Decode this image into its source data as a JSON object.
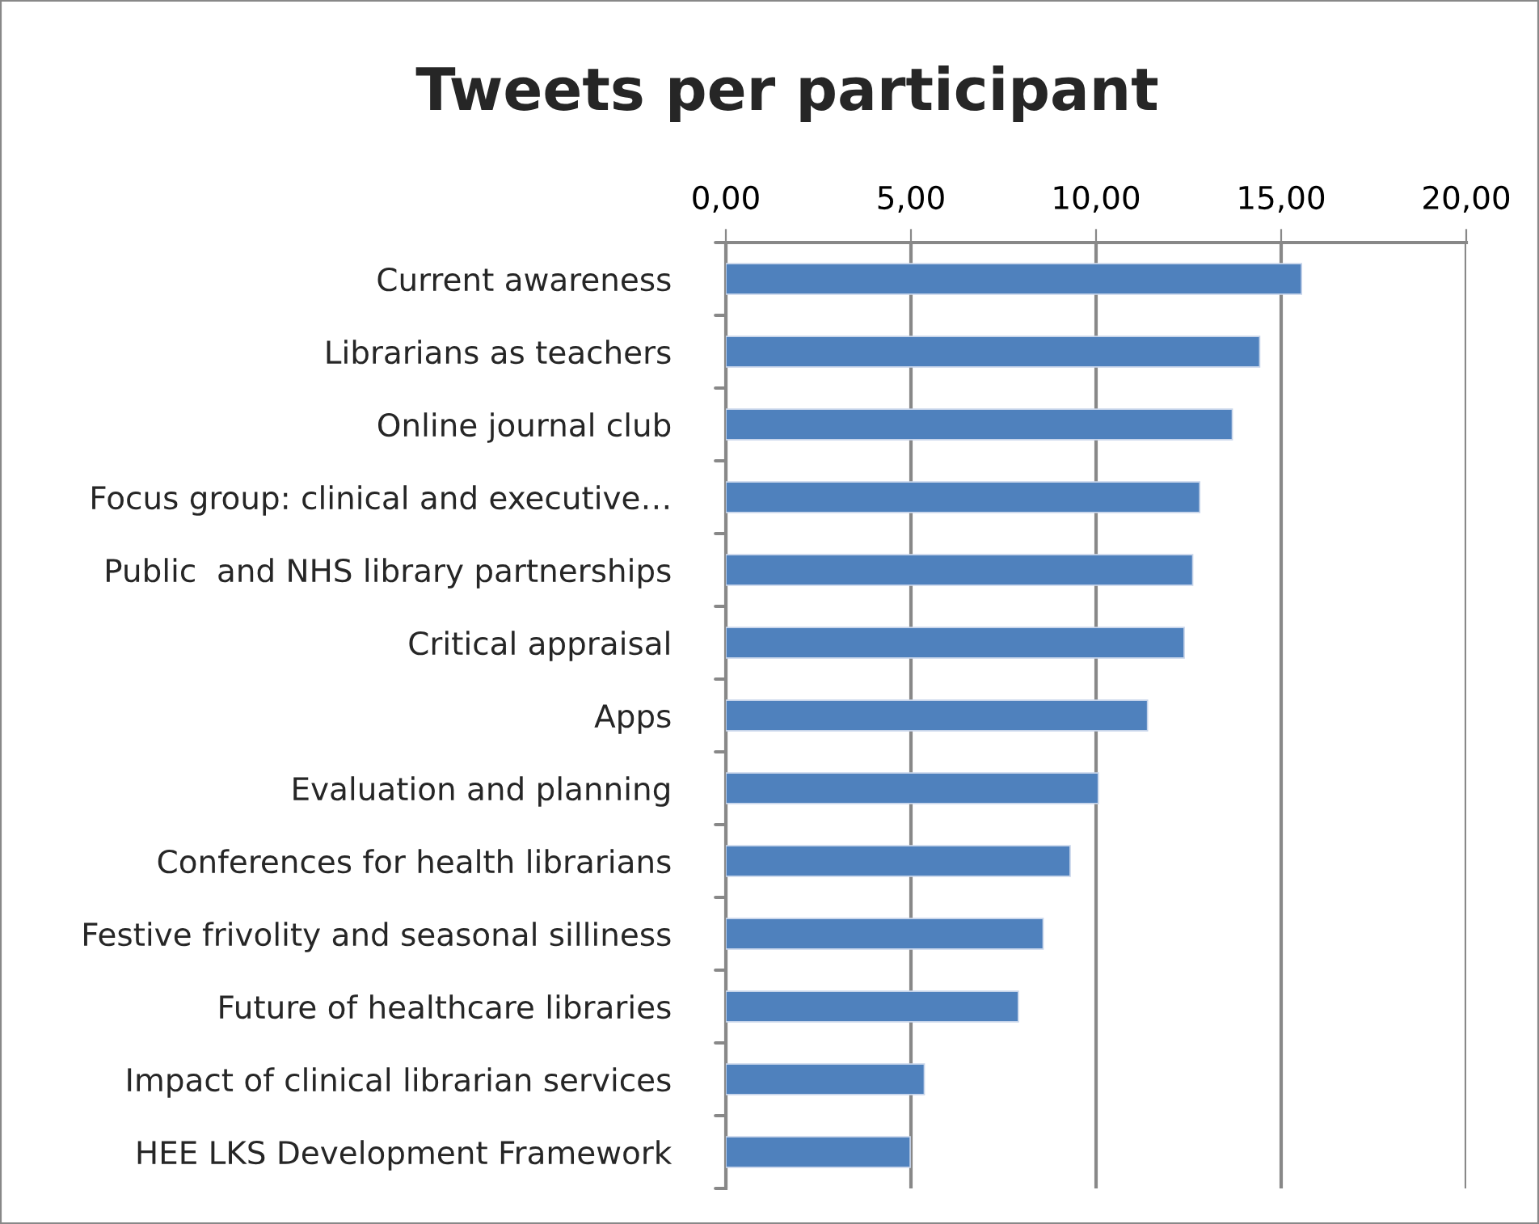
{
  "chart_data": {
    "type": "bar",
    "orientation": "horizontal",
    "title": "Tweets per participant",
    "categories": [
      "Current awareness",
      "Librarians as teachers",
      "Online journal club",
      "Focus group: clinical and executive…",
      "Public  and NHS library partnerships",
      "Critical appraisal",
      "Apps",
      "Evaluation and planning",
      "Conferences for health librarians",
      "Festive frivolity and seasonal silliness",
      "Future of healthcare libraries",
      "Impact of clinical librarian services",
      "HEE LKS Development Framework"
    ],
    "values": [
      15.55,
      14.42,
      13.68,
      12.8,
      12.61,
      12.38,
      11.39,
      10.06,
      9.3,
      8.57,
      7.9,
      5.36,
      4.98
    ],
    "color": "#4f81bd",
    "xlim": [
      0,
      20
    ],
    "xticks": [
      {
        "value": 0,
        "label": "0,00"
      },
      {
        "value": 5,
        "label": "5,00"
      },
      {
        "value": 10,
        "label": "10,00"
      },
      {
        "value": 15,
        "label": "15,00"
      },
      {
        "value": 20,
        "label": "20,00"
      }
    ],
    "grid": "x",
    "legend": false
  }
}
